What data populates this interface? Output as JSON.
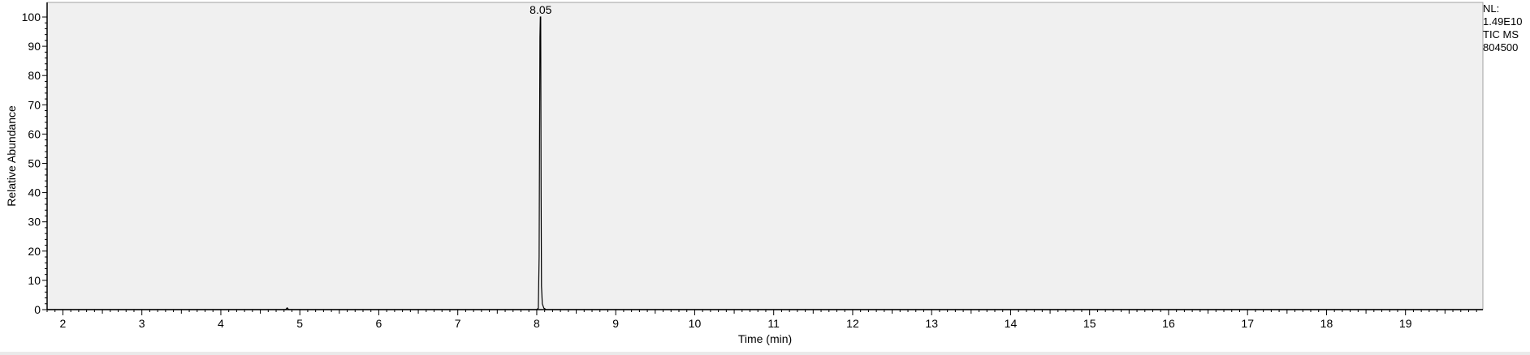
{
  "chart_data": {
    "type": "line",
    "title": "",
    "xlabel": "Time (min)",
    "ylabel": "Relative Abundance",
    "xlim": [
      1.8,
      19.98
    ],
    "ylim": [
      0,
      100
    ],
    "x_ticks": [
      2,
      3,
      4,
      5,
      6,
      7,
      8,
      9,
      10,
      11,
      12,
      13,
      14,
      15,
      16,
      17,
      18,
      19
    ],
    "y_ticks": [
      0,
      10,
      20,
      30,
      40,
      50,
      60,
      70,
      80,
      90,
      100
    ],
    "grid": false,
    "series": [
      {
        "color": "#000000",
        "x": [
          1.8,
          4.82,
          4.84,
          4.86,
          8.0,
          8.02,
          8.03,
          8.04,
          8.045,
          8.05,
          8.055,
          8.06,
          8.07,
          8.09,
          8.12,
          19.98
        ],
        "y": [
          0,
          0,
          0.6,
          0,
          0,
          0.5,
          18,
          93,
          100,
          100,
          40,
          8,
          2,
          0.5,
          0,
          0
        ]
      }
    ],
    "peak_labels": [
      {
        "x": 8.05,
        "y": 100,
        "text": "8.05"
      }
    ]
  },
  "info": {
    "nl_label": "NL:",
    "nl_value": "1.49E10",
    "trace": "TIC  MS",
    "sample": "804500"
  },
  "colors": {
    "plot_background": "#f0f0f0",
    "axis": "#000000",
    "trace": "#000000"
  }
}
